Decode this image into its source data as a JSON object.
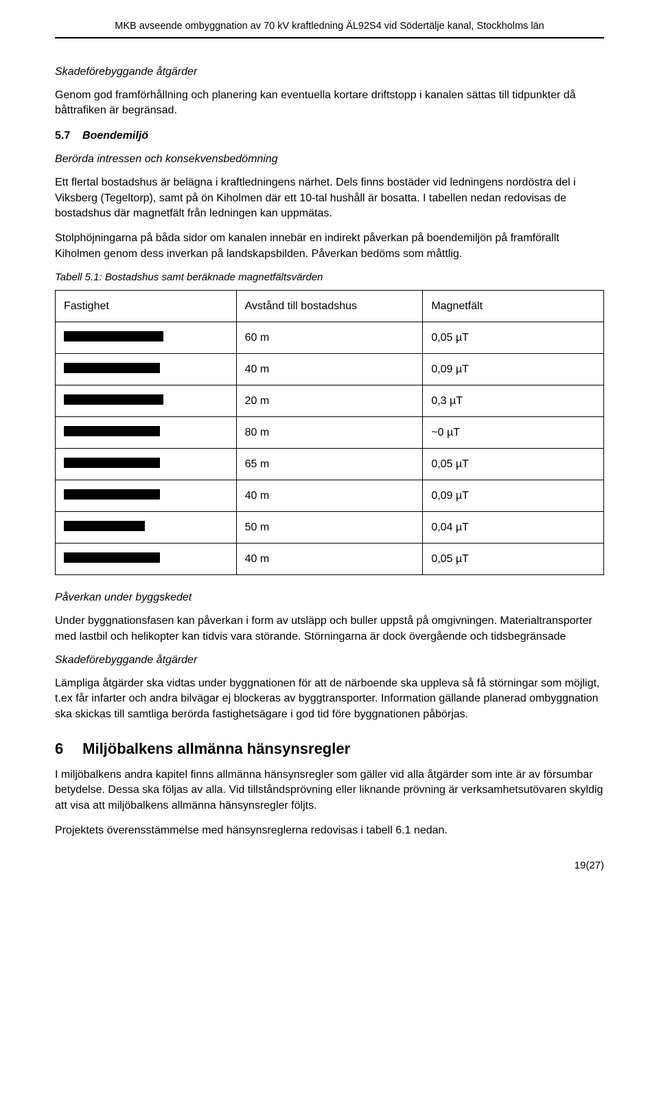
{
  "header": {
    "title": "MKB avseende ombyggnation av 70 kV kraftledning ÄL92S4 vid Södertälje kanal, Stockholms län"
  },
  "s1": {
    "heading": "Skadeförebyggande åtgärder",
    "p1": "Genom god framförhållning och planering kan eventuella kortare driftstopp i kanalen sättas till tidpunkter då båttrafiken är begränsad."
  },
  "s2": {
    "num": "5.7",
    "title": "Boendemiljö",
    "sub": "Berörda intressen och konsekvensbedömning",
    "p1": "Ett flertal bostadshus är belägna i kraftledningens närhet. Dels finns bostäder vid ledningens nordöstra del i Viksberg (Tegeltorp), samt på ön Kiholmen där ett 10-tal hushåll är bosatta. I tabellen nedan redovisas de bostadshus där magnetfält från ledningen kan uppmätas.",
    "p2": "Stolphöjningarna på båda sidor om kanalen innebär en indirekt påverkan på boendemiljön på framförallt Kiholmen genom dess inverkan på landskapsbilden. Påverkan bedöms som måttlig."
  },
  "table": {
    "caption": "Tabell 5.1: Bostadshus samt beräknade magnetfältsvärden",
    "h1": "Fastighet",
    "h2": "Avstånd till bostadshus",
    "h3": "Magnetfält",
    "rows": [
      {
        "redact_w": 145,
        "dist": "60 m",
        "mag": "0,05 µT"
      },
      {
        "redact_w": 140,
        "dist": "40 m",
        "mag": "0,09 µT"
      },
      {
        "redact_w": 145,
        "dist": "20 m",
        "mag": "0,3 µT"
      },
      {
        "redact_w": 140,
        "dist": "80 m",
        "mag": "~0 µT"
      },
      {
        "redact_w": 140,
        "dist": "65 m",
        "mag": "0,05 µT"
      },
      {
        "redact_w": 140,
        "dist": "40 m",
        "mag": "0,09 µT"
      },
      {
        "redact_w": 118,
        "dist": "50 m",
        "mag": "0,04 µT"
      },
      {
        "redact_w": 140,
        "dist": "40 m",
        "mag": "0,05 µT"
      }
    ]
  },
  "s3": {
    "heading": "Påverkan under byggskedet",
    "p1": "Under byggnationsfasen kan påverkan i form av utsläpp och buller uppstå på omgivningen. Materialtransporter med lastbil och helikopter kan tidvis vara störande. Störningarna är dock övergående och tidsbegränsade"
  },
  "s4": {
    "heading": "Skadeförebyggande åtgärder",
    "p1": "Lämpliga åtgärder ska vidtas under byggnationen för att de närboende ska uppleva så få störningar som möjligt, t.ex får infarter och andra bilvägar ej blockeras av byggtransporter. Information gällande planerad ombyggnation ska skickas till samtliga berörda fastighetsägare i god tid före byggnationen påbörjas."
  },
  "s5": {
    "num": "6",
    "title": "Miljöbalkens allmänna hänsynsregler",
    "p1": "I miljöbalkens andra kapitel finns allmänna hänsynsregler som gäller vid alla åtgärder som inte är av försumbar betydelse. Dessa ska följas av alla. Vid tillståndsprövning eller liknande prövning är verksamhetsutövaren skyldig att visa att miljöbalkens allmänna hänsynsregler följts.",
    "p2": "Projektets överensstämmelse med hänsynsreglerna redovisas i tabell 6.1 nedan."
  },
  "footer": {
    "page": "19(27)"
  }
}
